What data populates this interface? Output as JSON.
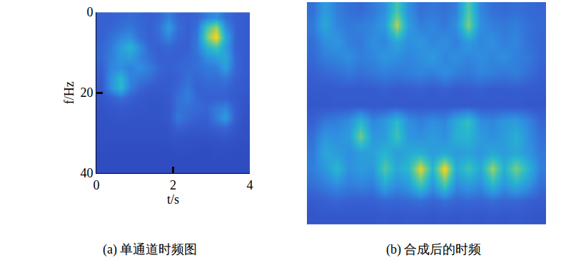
{
  "chart_data": [
    {
      "type": "heatmap",
      "x_label": "t/s",
      "y_label": "f/Hz",
      "caption": "(a) 单通道时频图",
      "x": [
        0.125,
        0.375,
        0.625,
        0.875,
        1.125,
        1.375,
        1.625,
        1.875,
        2.125,
        2.375,
        2.625,
        2.875,
        3.125,
        3.375,
        3.625,
        3.875
      ],
      "y": [
        1.25,
        3.75,
        6.25,
        8.75,
        11.25,
        13.75,
        16.25,
        18.75,
        21.25,
        23.75,
        26.25,
        28.75,
        31.25,
        33.75,
        36.25,
        38.75
      ],
      "cells": [
        [
          0.3,
          0.3,
          0.32,
          0.34,
          0.32,
          0.3,
          0.32,
          0.4,
          0.32,
          0.3,
          0.32,
          0.4,
          0.45,
          0.35,
          0.3,
          0.28
        ],
        [
          0.3,
          0.32,
          0.35,
          0.38,
          0.33,
          0.3,
          0.35,
          0.5,
          0.35,
          0.3,
          0.35,
          0.7,
          0.85,
          0.45,
          0.3,
          0.28
        ],
        [
          0.3,
          0.35,
          0.42,
          0.45,
          0.35,
          0.3,
          0.33,
          0.42,
          0.32,
          0.3,
          0.38,
          0.8,
          1.0,
          0.55,
          0.3,
          0.28
        ],
        [
          0.32,
          0.38,
          0.5,
          0.6,
          0.45,
          0.32,
          0.3,
          0.32,
          0.3,
          0.3,
          0.38,
          0.6,
          0.7,
          0.5,
          0.3,
          0.28
        ],
        [
          0.32,
          0.4,
          0.48,
          0.5,
          0.42,
          0.35,
          0.3,
          0.3,
          0.3,
          0.32,
          0.35,
          0.45,
          0.5,
          0.55,
          0.32,
          0.28
        ],
        [
          0.3,
          0.42,
          0.45,
          0.4,
          0.45,
          0.4,
          0.32,
          0.3,
          0.32,
          0.33,
          0.35,
          0.38,
          0.4,
          0.5,
          0.32,
          0.28
        ],
        [
          0.28,
          0.45,
          0.6,
          0.42,
          0.38,
          0.35,
          0.3,
          0.28,
          0.3,
          0.35,
          0.32,
          0.35,
          0.35,
          0.38,
          0.3,
          0.27
        ],
        [
          0.27,
          0.45,
          0.62,
          0.4,
          0.32,
          0.28,
          0.27,
          0.28,
          0.32,
          0.38,
          0.3,
          0.32,
          0.32,
          0.32,
          0.28,
          0.27
        ],
        [
          0.25,
          0.3,
          0.35,
          0.3,
          0.27,
          0.25,
          0.25,
          0.27,
          0.35,
          0.4,
          0.32,
          0.3,
          0.3,
          0.3,
          0.27,
          0.25
        ],
        [
          0.24,
          0.25,
          0.27,
          0.26,
          0.25,
          0.24,
          0.24,
          0.26,
          0.35,
          0.35,
          0.33,
          0.32,
          0.38,
          0.42,
          0.28,
          0.24
        ],
        [
          0.23,
          0.24,
          0.25,
          0.24,
          0.24,
          0.24,
          0.24,
          0.26,
          0.38,
          0.33,
          0.3,
          0.3,
          0.4,
          0.5,
          0.28,
          0.23
        ],
        [
          0.22,
          0.23,
          0.23,
          0.23,
          0.23,
          0.23,
          0.23,
          0.24,
          0.3,
          0.28,
          0.26,
          0.27,
          0.3,
          0.32,
          0.25,
          0.22
        ],
        [
          0.22,
          0.22,
          0.22,
          0.22,
          0.22,
          0.22,
          0.22,
          0.23,
          0.24,
          0.23,
          0.23,
          0.23,
          0.24,
          0.25,
          0.23,
          0.22
        ],
        [
          0.21,
          0.21,
          0.21,
          0.21,
          0.21,
          0.21,
          0.21,
          0.21,
          0.22,
          0.22,
          0.21,
          0.21,
          0.22,
          0.22,
          0.21,
          0.21
        ],
        [
          0.2,
          0.2,
          0.2,
          0.2,
          0.2,
          0.2,
          0.2,
          0.2,
          0.21,
          0.2,
          0.2,
          0.2,
          0.21,
          0.21,
          0.2,
          0.2
        ],
        [
          0.2,
          0.2,
          0.2,
          0.2,
          0.2,
          0.2,
          0.2,
          0.2,
          0.2,
          0.2,
          0.2,
          0.2,
          0.2,
          0.2,
          0.2,
          0.2
        ]
      ],
      "xlim": [
        0,
        4
      ],
      "xticks": [
        0,
        2,
        4
      ],
      "ylim": [
        0,
        40
      ],
      "yticks": [
        0,
        20,
        40
      ],
      "zlim": [
        0,
        1
      ],
      "grid": false
    },
    {
      "type": "heatmap",
      "caption": "(b) 合成后的时频",
      "cells": [
        [
          0.35,
          0.5,
          0.4,
          0.35,
          0.33,
          0.38,
          0.45,
          0.7,
          0.45,
          0.35,
          0.38,
          0.35,
          0.4,
          0.72,
          0.42,
          0.35,
          0.33,
          0.35,
          0.33,
          0.32
        ],
        [
          0.38,
          0.55,
          0.42,
          0.38,
          0.4,
          0.42,
          0.5,
          0.88,
          0.5,
          0.4,
          0.42,
          0.38,
          0.45,
          0.8,
          0.45,
          0.4,
          0.38,
          0.4,
          0.35,
          0.33
        ],
        [
          0.35,
          0.45,
          0.48,
          0.4,
          0.38,
          0.45,
          0.42,
          0.55,
          0.45,
          0.48,
          0.42,
          0.45,
          0.4,
          0.5,
          0.42,
          0.45,
          0.4,
          0.42,
          0.35,
          0.32
        ],
        [
          0.33,
          0.4,
          0.42,
          0.45,
          0.4,
          0.42,
          0.48,
          0.45,
          0.42,
          0.45,
          0.5,
          0.42,
          0.45,
          0.42,
          0.45,
          0.42,
          0.45,
          0.4,
          0.38,
          0.32
        ],
        [
          0.3,
          0.33,
          0.35,
          0.38,
          0.35,
          0.38,
          0.4,
          0.38,
          0.4,
          0.42,
          0.4,
          0.45,
          0.4,
          0.38,
          0.42,
          0.4,
          0.38,
          0.4,
          0.35,
          0.3
        ],
        [
          0.27,
          0.27,
          0.28,
          0.28,
          0.28,
          0.28,
          0.3,
          0.28,
          0.29,
          0.3,
          0.28,
          0.3,
          0.28,
          0.29,
          0.3,
          0.28,
          0.28,
          0.29,
          0.28,
          0.27
        ],
        [
          0.26,
          0.26,
          0.27,
          0.27,
          0.27,
          0.27,
          0.27,
          0.27,
          0.27,
          0.27,
          0.27,
          0.27,
          0.27,
          0.27,
          0.27,
          0.27,
          0.27,
          0.27,
          0.26,
          0.26
        ],
        [
          0.3,
          0.38,
          0.4,
          0.45,
          0.6,
          0.42,
          0.48,
          0.62,
          0.45,
          0.4,
          0.45,
          0.42,
          0.55,
          0.65,
          0.45,
          0.42,
          0.48,
          0.5,
          0.42,
          0.32
        ],
        [
          0.35,
          0.48,
          0.45,
          0.5,
          0.78,
          0.48,
          0.5,
          0.68,
          0.48,
          0.45,
          0.5,
          0.45,
          0.58,
          0.6,
          0.5,
          0.45,
          0.5,
          0.58,
          0.45,
          0.35
        ],
        [
          0.38,
          0.55,
          0.5,
          0.45,
          0.5,
          0.52,
          0.6,
          0.5,
          0.55,
          0.58,
          0.5,
          0.55,
          0.5,
          0.52,
          0.48,
          0.55,
          0.5,
          0.55,
          0.48,
          0.38
        ],
        [
          0.4,
          0.48,
          0.62,
          0.45,
          0.5,
          0.48,
          0.72,
          0.55,
          0.62,
          0.95,
          0.6,
          1.0,
          0.55,
          0.68,
          0.55,
          0.85,
          0.58,
          0.8,
          0.6,
          0.4
        ],
        [
          0.35,
          0.4,
          0.45,
          0.4,
          0.42,
          0.4,
          0.55,
          0.45,
          0.5,
          0.7,
          0.48,
          0.72,
          0.45,
          0.5,
          0.45,
          0.62,
          0.48,
          0.58,
          0.48,
          0.35
        ],
        [
          0.28,
          0.3,
          0.32,
          0.3,
          0.3,
          0.3,
          0.33,
          0.32,
          0.33,
          0.35,
          0.32,
          0.35,
          0.32,
          0.33,
          0.32,
          0.34,
          0.32,
          0.33,
          0.3,
          0.28
        ],
        [
          0.25,
          0.26,
          0.26,
          0.26,
          0.26,
          0.26,
          0.27,
          0.26,
          0.27,
          0.27,
          0.26,
          0.27,
          0.26,
          0.27,
          0.26,
          0.27,
          0.26,
          0.27,
          0.26,
          0.25
        ]
      ],
      "zlim": [
        0,
        1
      ],
      "tick_labels": false,
      "grid": false
    }
  ]
}
